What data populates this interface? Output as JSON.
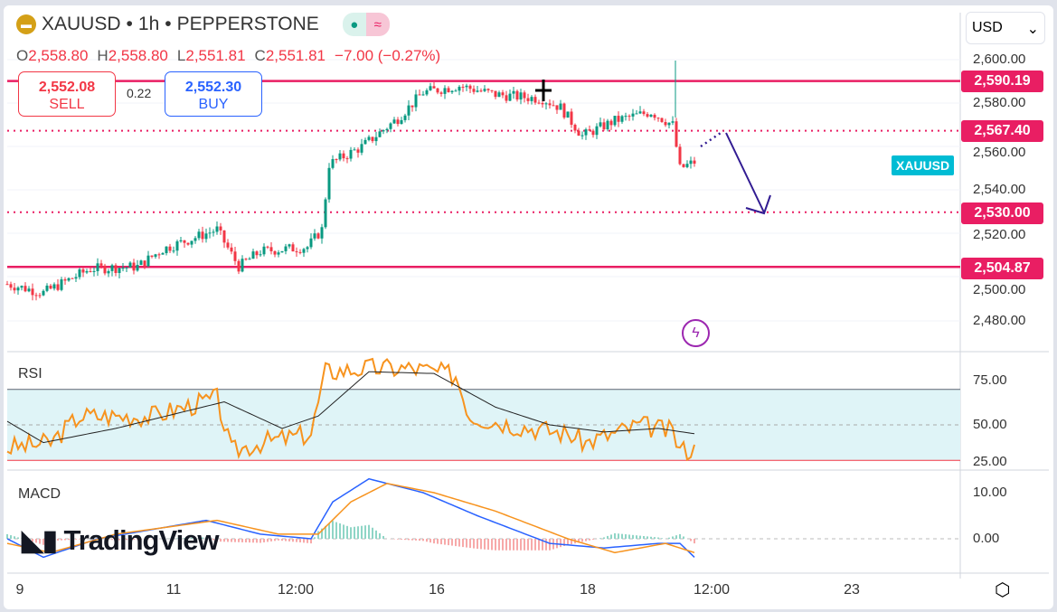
{
  "header": {
    "symbol": "XAUUSD",
    "interval": "1h",
    "broker": "PEPPERSTONE",
    "sep": "•",
    "market_status": "●",
    "wave_icon": "≈"
  },
  "ohlc": {
    "o_label": "O",
    "o": "2,558.80",
    "h_label": "H",
    "h": "2,558.80",
    "l_label": "L",
    "l": "2,551.81",
    "c_label": "C",
    "c": "2,551.81",
    "change": "−7.00 (−0.27%)"
  },
  "trade": {
    "sell_price": "2,552.08",
    "sell_label": "SELL",
    "spread": "0.22",
    "buy_price": "2,552.30",
    "buy_label": "BUY"
  },
  "currency": "USD",
  "price_axis": [
    "2,600.00",
    "2,580.00",
    "2,560.00",
    "2,540.00",
    "2,520.00",
    "2,500.00",
    "2,480.00"
  ],
  "levels": [
    {
      "label": "2,590.19",
      "value": 2590.19,
      "style": "solid"
    },
    {
      "label": "2,567.40",
      "value": 2567.4,
      "style": "dotted"
    },
    {
      "label": "2,530.00",
      "value": 2530,
      "style": "dotted"
    },
    {
      "label": "2,504.87",
      "value": 2504.87,
      "style": "solid"
    }
  ],
  "symbol_tag": "XAUUSD",
  "rsi": {
    "label": "RSI",
    "axis": [
      "75.00",
      "50.00",
      "25.00"
    ]
  },
  "macd": {
    "label": "MACD",
    "axis": [
      "10.00",
      "0.00"
    ]
  },
  "watermark": "TradingView",
  "time_axis": [
    "9",
    "11",
    "12:00",
    "16",
    "18",
    "12:00",
    "23"
  ],
  "colors": {
    "up": "#089981",
    "down": "#f23645",
    "level": "#e91e63",
    "rsi": "#f7931e",
    "macd": "#2962ff",
    "signal": "#f7931e",
    "arrow": "#311b92"
  },
  "chart_data": {
    "type": "candlestick",
    "close_keypoints": [
      [
        0,
        2497
      ],
      [
        10,
        2493
      ],
      [
        23,
        2504
      ],
      [
        36,
        2505
      ],
      [
        43,
        2513
      ],
      [
        58,
        2522
      ],
      [
        64,
        2505
      ],
      [
        70,
        2512
      ],
      [
        83,
        2514
      ],
      [
        87,
        2522
      ],
      [
        89,
        2552
      ],
      [
        98,
        2560
      ],
      [
        108,
        2573
      ],
      [
        115,
        2585
      ],
      [
        125,
        2588
      ],
      [
        135,
        2584
      ],
      [
        148,
        2582
      ],
      [
        153,
        2578
      ],
      [
        159,
        2565
      ],
      [
        168,
        2572
      ],
      [
        178,
        2576
      ],
      [
        184,
        2570
      ],
      [
        186,
        2550
      ],
      [
        190,
        2553
      ]
    ],
    "rsi_keypoints": [
      [
        0,
        37
      ],
      [
        12,
        40
      ],
      [
        20,
        55
      ],
      [
        40,
        55
      ],
      [
        58,
        65
      ],
      [
        62,
        35
      ],
      [
        70,
        40
      ],
      [
        84,
        45
      ],
      [
        88,
        80
      ],
      [
        100,
        82
      ],
      [
        112,
        82
      ],
      [
        124,
        78
      ],
      [
        128,
        55
      ],
      [
        140,
        50
      ],
      [
        155,
        45
      ],
      [
        160,
        40
      ],
      [
        175,
        50
      ],
      [
        184,
        46
      ],
      [
        186,
        36
      ],
      [
        190,
        36
      ]
    ],
    "rsi_ma_keypoints": [
      [
        0,
        52
      ],
      [
        10,
        40
      ],
      [
        30,
        48
      ],
      [
        60,
        63
      ],
      [
        76,
        48
      ],
      [
        86,
        55
      ],
      [
        100,
        80
      ],
      [
        118,
        79
      ],
      [
        135,
        60
      ],
      [
        150,
        50
      ],
      [
        165,
        46
      ],
      [
        180,
        48
      ],
      [
        190,
        45
      ]
    ],
    "macd_keypoints": [
      [
        0,
        0
      ],
      [
        10,
        -4
      ],
      [
        25,
        0
      ],
      [
        55,
        4
      ],
      [
        70,
        1
      ],
      [
        84,
        0
      ],
      [
        90,
        8
      ],
      [
        100,
        13
      ],
      [
        115,
        10
      ],
      [
        130,
        5
      ],
      [
        150,
        -1
      ],
      [
        165,
        -2
      ],
      [
        180,
        -1
      ],
      [
        186,
        -1
      ],
      [
        190,
        -4
      ]
    ],
    "signal_keypoints": [
      [
        0,
        -1
      ],
      [
        12,
        -3
      ],
      [
        30,
        1
      ],
      [
        58,
        4
      ],
      [
        75,
        1
      ],
      [
        86,
        1
      ],
      [
        95,
        8
      ],
      [
        105,
        12
      ],
      [
        118,
        10
      ],
      [
        135,
        6
      ],
      [
        155,
        0
      ],
      [
        168,
        -3
      ],
      [
        182,
        -1
      ],
      [
        190,
        -3
      ]
    ]
  }
}
